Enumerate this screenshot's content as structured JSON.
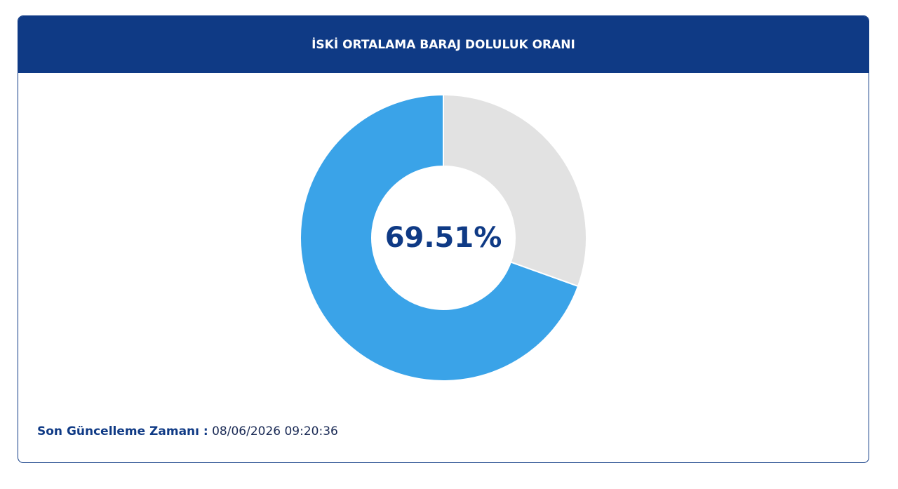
{
  "chart_data": {
    "type": "donut",
    "title": "İSKİ ORTALAMA BARAJ DOLULUK ORANI",
    "values": [
      69.51,
      30.49
    ],
    "value_labels": [
      "69.51%",
      null
    ],
    "colors": [
      "#3aa3e8",
      "#e2e2e2"
    ]
  },
  "footer": {
    "label": "Son Güncelleme Zamanı :",
    "time": "08/06/2026 09:20:36"
  }
}
